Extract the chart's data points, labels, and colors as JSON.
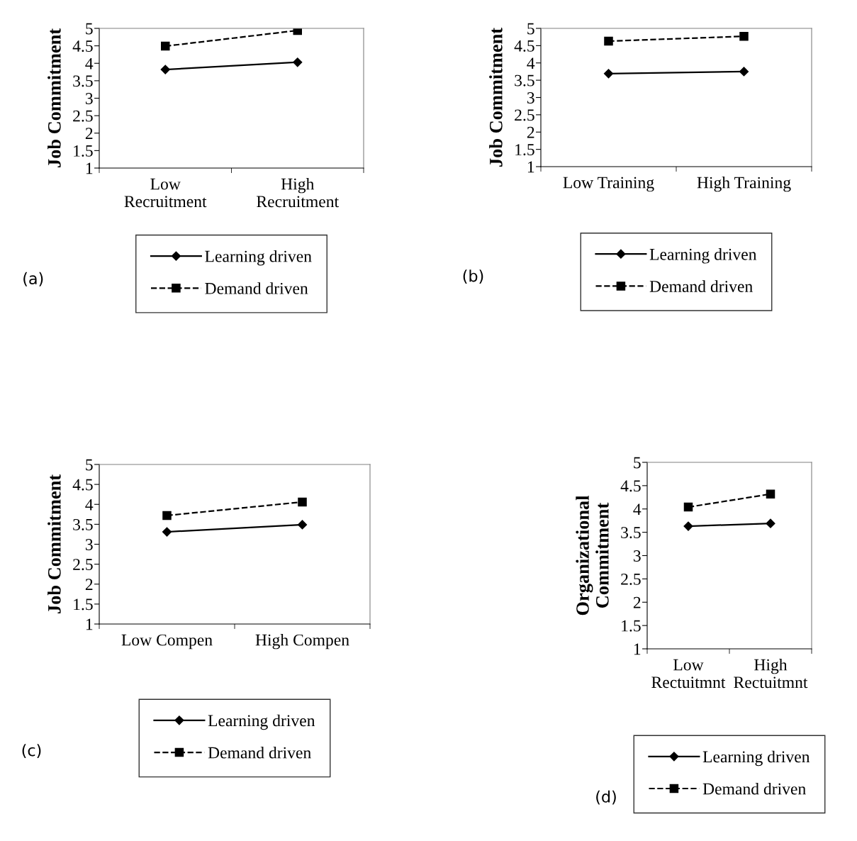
{
  "chart_data": [
    {
      "type": "line",
      "categories": [
        "Low\nRecruitment",
        "High\nRecruitment"
      ],
      "ylabel": "Job Commitment",
      "ylim": [
        1,
        5
      ],
      "yticks": [
        1,
        1.5,
        2,
        2.5,
        3,
        3.5,
        4,
        4.5,
        5
      ],
      "grid": false,
      "legend": "bottom",
      "annotations": [
        "(a)"
      ],
      "series": [
        {
          "name": "Learning driven",
          "color": "#000000",
          "marker": "diamond",
          "line_style": "solid",
          "values": [
            3.82,
            4.03
          ]
        },
        {
          "name": "Demand driven",
          "color": "#000000",
          "marker": "square",
          "line_style": "dashed",
          "values": [
            4.49,
            4.94
          ]
        }
      ]
    },
    {
      "type": "line",
      "categories": [
        "Low Training",
        "High Training"
      ],
      "ylabel": "Job Commitment",
      "ylim": [
        1,
        5
      ],
      "yticks": [
        1,
        1.5,
        2,
        2.5,
        3,
        3.5,
        4,
        4.5,
        5
      ],
      "grid": false,
      "legend": "bottom",
      "annotations": [
        "(b)"
      ],
      "series": [
        {
          "name": "Learning driven",
          "color": "#000000",
          "marker": "diamond",
          "line_style": "solid",
          "values": [
            3.69,
            3.75
          ]
        },
        {
          "name": "Demand driven",
          "color": "#000000",
          "marker": "square",
          "line_style": "dashed",
          "values": [
            4.63,
            4.77
          ]
        }
      ]
    },
    {
      "type": "line",
      "categories": [
        "Low Compen",
        "High Compen"
      ],
      "ylabel": "Job Commitment",
      "ylim": [
        1,
        5
      ],
      "yticks": [
        1,
        1.5,
        2,
        2.5,
        3,
        3.5,
        4,
        4.5,
        5
      ],
      "grid": false,
      "legend": "bottom",
      "annotations": [
        "(c)"
      ],
      "series": [
        {
          "name": "Learning driven",
          "color": "#000000",
          "marker": "diamond",
          "line_style": "solid",
          "values": [
            3.31,
            3.49
          ]
        },
        {
          "name": "Demand driven",
          "color": "#000000",
          "marker": "square",
          "line_style": "dashed",
          "values": [
            3.72,
            4.06
          ]
        }
      ]
    },
    {
      "type": "line",
      "categories": [
        "Low\nRectuitmnt",
        "High\nRectuitmnt"
      ],
      "ylabel": "Organizational\nCommitment",
      "ylim": [
        1,
        5
      ],
      "yticks": [
        1,
        1.5,
        2,
        2.5,
        3,
        3.5,
        4,
        4.5,
        5
      ],
      "grid": false,
      "legend": "bottom",
      "annotations": [
        "(d)"
      ],
      "series": [
        {
          "name": "Learning driven",
          "color": "#000000",
          "marker": "diamond",
          "line_style": "solid",
          "values": [
            3.63,
            3.69
          ]
        },
        {
          "name": "Demand driven",
          "color": "#000000",
          "marker": "square",
          "line_style": "dashed",
          "values": [
            4.04,
            4.32
          ]
        }
      ]
    }
  ]
}
